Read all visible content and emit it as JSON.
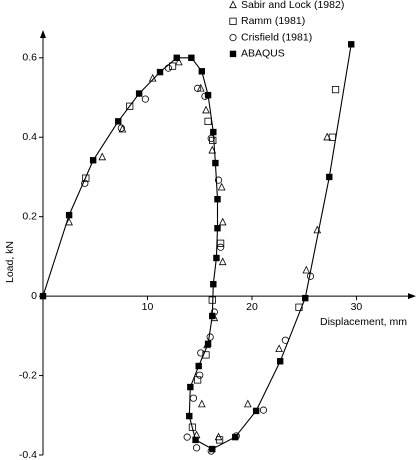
{
  "chart_data": {
    "type": "scatter",
    "x_label": "Displacement, mm",
    "y_label": "Load, kN",
    "xlim": [
      0,
      35.7
    ],
    "ylim": [
      -0.4,
      0.67
    ],
    "xticks": [
      10,
      20,
      30
    ],
    "yticks": [
      -0.4,
      -0.2,
      0,
      0.2,
      0.4,
      0.6
    ],
    "legend": "top-right",
    "series": [
      {
        "name": "Sabir and Lock (1982)",
        "marker": "triangle",
        "color": "#000000",
        "x": [
          2.5,
          5.67,
          7.6,
          10.5,
          13.0,
          15.1,
          15.6,
          16.2,
          17.1,
          17.2,
          17.2,
          16.4,
          15.7,
          15.2,
          14.7,
          16.8,
          19.6,
          22.6,
          25.2,
          26.25,
          27.2
        ],
        "values": [
          0.186,
          0.35,
          0.42,
          0.548,
          0.589,
          0.523,
          0.468,
          0.367,
          0.274,
          0.186,
          0.086,
          -0.055,
          -0.123,
          -0.272,
          -0.35,
          -0.355,
          -0.272,
          -0.133,
          0.065,
          0.166,
          0.4
        ]
      },
      {
        "name": "Ramm (1981)",
        "marker": "square",
        "color": "#000000",
        "x": [
          4.1,
          8.3,
          12.4,
          15.8,
          16.25,
          17.0,
          16.2,
          15.6,
          14.8,
          14.3,
          16.9,
          24.5,
          27.7,
          28.0
        ],
        "values": [
          0.297,
          0.478,
          0.579,
          0.44,
          0.392,
          0.133,
          -0.01,
          -0.148,
          -0.211,
          -0.33,
          -0.362,
          -0.028,
          0.4,
          0.52
        ]
      },
      {
        "name": "Crisfield (1981)",
        "marker": "circle",
        "color": "#000000",
        "x": [
          4.0,
          7.5,
          9.8,
          12.0,
          14.8,
          15.5,
          16.1,
          16.8,
          17.0,
          16.4,
          16.0,
          15.1,
          15.0,
          14.4,
          13.8,
          14.7,
          16.1,
          18.5,
          21.1,
          23.2,
          25.6
        ],
        "values": [
          0.284,
          0.423,
          0.496,
          0.574,
          0.523,
          0.503,
          0.397,
          0.292,
          0.123,
          -0.04,
          -0.103,
          -0.143,
          -0.199,
          -0.257,
          -0.355,
          -0.382,
          -0.39,
          -0.352,
          -0.287,
          -0.111,
          0.05
        ]
      },
      {
        "name": "ABAQUS",
        "marker": "filled-square",
        "color": "#000000",
        "line": true,
        "x": [
          0,
          2.5,
          4.8,
          7.2,
          9.2,
          11.2,
          12.8,
          14.2,
          15.2,
          15.8,
          16.3,
          16.5,
          16.7,
          16.7,
          16.6,
          16.3,
          16.2,
          15.8,
          14.9,
          14.1,
          14.0,
          14.6,
          16.2,
          18.4,
          20.4,
          22.7,
          25.1,
          27.4,
          29.5
        ],
        "values": [
          0,
          0.204,
          0.342,
          0.44,
          0.51,
          0.564,
          0.6,
          0.6,
          0.566,
          0.506,
          0.413,
          0.335,
          0.244,
          0.171,
          0.096,
          0.03,
          -0.05,
          -0.12,
          -0.176,
          -0.229,
          -0.302,
          -0.362,
          -0.385,
          -0.355,
          -0.289,
          -0.164,
          -0.005,
          0.3,
          0.634
        ]
      }
    ]
  }
}
